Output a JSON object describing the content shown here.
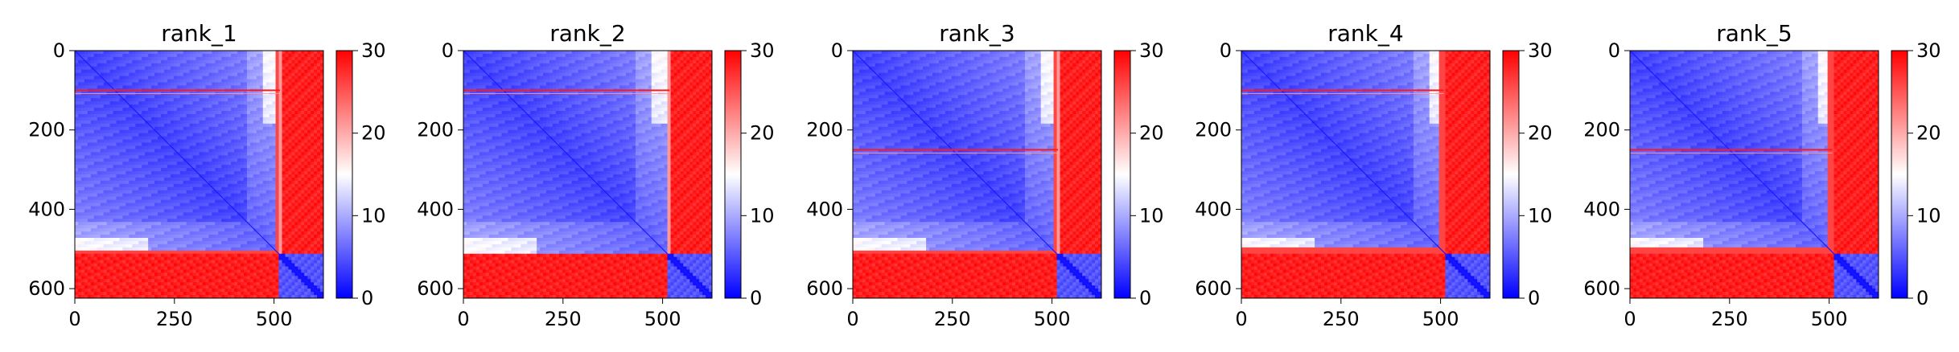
{
  "chart_data": [
    {
      "type": "heatmap",
      "title": "rank_1",
      "n": 624,
      "blocks": [
        0,
        507,
        624
      ],
      "red_band_x": 515,
      "red_rows": [
        100
      ],
      "row_ticks": [
        0,
        200,
        400,
        600
      ],
      "col_ticks": [
        0,
        250,
        500
      ],
      "xlim": [
        0,
        624
      ],
      "ylim": [
        624,
        0
      ],
      "colorbar": {
        "min": 0,
        "max": 30,
        "ticks": [
          0,
          10,
          20,
          30
        ],
        "colormap": "bwr"
      }
    },
    {
      "type": "heatmap",
      "title": "rank_2",
      "n": 624,
      "blocks": [
        0,
        507,
        624
      ],
      "red_band_x": 518,
      "red_rows": [
        100
      ],
      "row_ticks": [
        0,
        200,
        400,
        600
      ],
      "col_ticks": [
        0,
        250,
        500
      ],
      "xlim": [
        0,
        624
      ],
      "ylim": [
        624,
        0
      ],
      "colorbar": {
        "min": 0,
        "max": 30,
        "ticks": [
          0,
          10,
          20,
          30
        ],
        "colormap": "bwr"
      }
    },
    {
      "type": "heatmap",
      "title": "rank_3",
      "n": 624,
      "blocks": [
        0,
        507,
        624
      ],
      "red_band_x": 515,
      "red_rows": [
        250
      ],
      "row_ticks": [
        0,
        200,
        400,
        600
      ],
      "col_ticks": [
        0,
        250,
        500
      ],
      "xlim": [
        0,
        624
      ],
      "ylim": [
        624,
        0
      ],
      "colorbar": {
        "min": 0,
        "max": 30,
        "ticks": [
          0,
          10,
          20,
          30
        ],
        "colormap": "bwr"
      }
    },
    {
      "type": "heatmap",
      "title": "rank_4",
      "n": 624,
      "blocks": [
        0,
        507,
        624
      ],
      "red_band_x": 508,
      "red_rows": [
        100
      ],
      "row_ticks": [
        0,
        200,
        400,
        600
      ],
      "col_ticks": [
        0,
        250,
        500
      ],
      "xlim": [
        0,
        624
      ],
      "ylim": [
        624,
        0
      ],
      "colorbar": {
        "min": 0,
        "max": 30,
        "ticks": [
          0,
          10,
          20,
          30
        ],
        "colormap": "bwr"
      }
    },
    {
      "type": "heatmap",
      "title": "rank_5",
      "n": 624,
      "blocks": [
        0,
        507,
        624
      ],
      "red_band_x": 508,
      "red_rows": [
        250
      ],
      "row_ticks": [
        0,
        200,
        400,
        600
      ],
      "col_ticks": [
        0,
        250,
        500
      ],
      "xlim": [
        0,
        624
      ],
      "ylim": [
        624,
        0
      ],
      "colorbar": {
        "min": 0,
        "max": 30,
        "ticks": [
          0,
          10,
          20,
          30
        ],
        "colormap": "bwr"
      }
    }
  ]
}
